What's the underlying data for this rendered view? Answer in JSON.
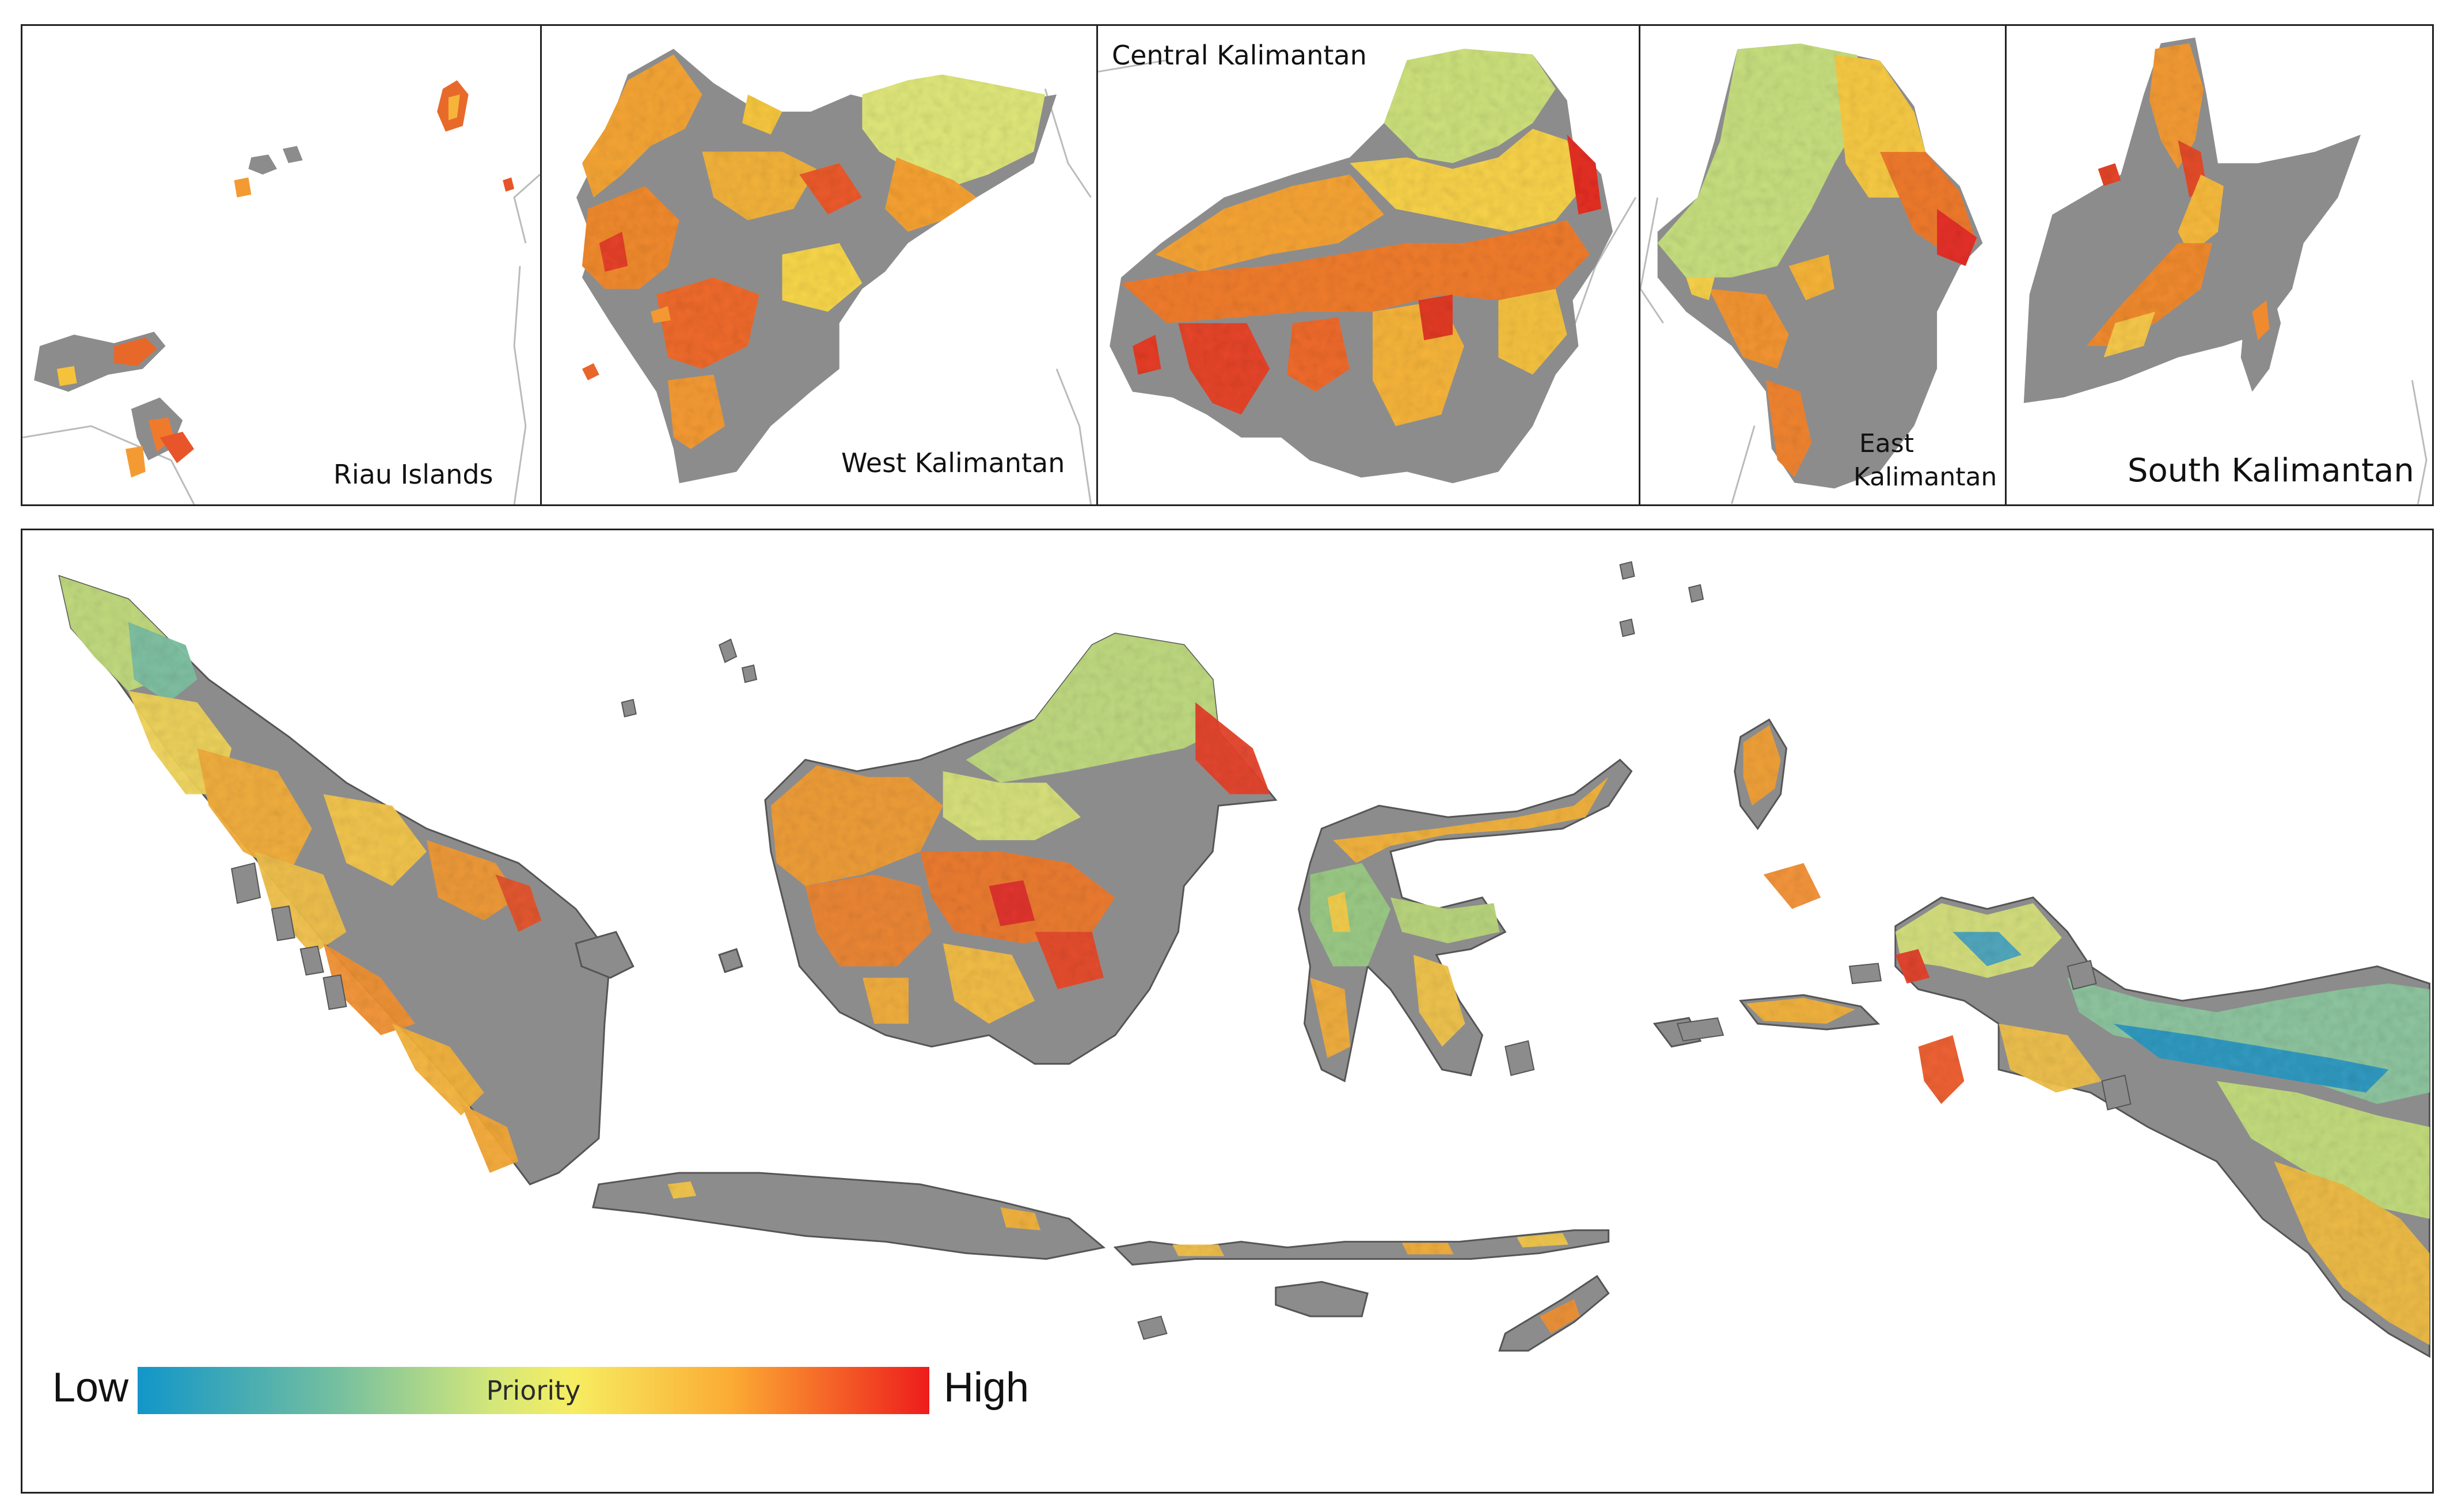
{
  "inset_labels": {
    "riau": "Riau Islands",
    "west": "West Kalimantan",
    "central": "Central Kalimantan",
    "east_line1": "East",
    "east_line2": "Kalimantan",
    "south": "South Kalimantan"
  },
  "legend": {
    "low": "Low",
    "title": "Priority",
    "high": "High",
    "colors": [
      "#1296c9",
      "#5fb7a8",
      "#c8e17d",
      "#f7f06a",
      "#fdc33a",
      "#f9862a",
      "#ee1c1c"
    ]
  },
  "colors": {
    "land_gray": "#8c8c8c",
    "boundary": "#555555",
    "low": "#1296c9",
    "mid_low": "#9fd07c",
    "mid": "#f2ea5c",
    "mid_high": "#f9a331",
    "high": "#ea2a1f"
  }
}
